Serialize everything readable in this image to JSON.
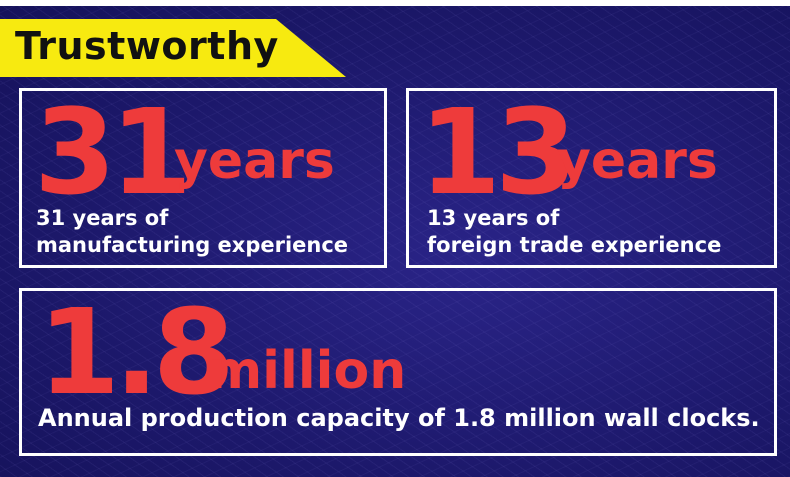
{
  "header": {
    "tag_label": "Trustworthy"
  },
  "stats": [
    {
      "value": "31",
      "unit": "years",
      "desc_line1": "31 years of",
      "desc_line2": "manufacturing experience"
    },
    {
      "value": "13",
      "unit": "years",
      "desc_line1": "13 years of",
      "desc_line2": "foreign trade experience"
    },
    {
      "value": "1.8",
      "unit": "million",
      "desc_line1": "Annual production capacity of 1.8 million wall clocks."
    }
  ],
  "colors": {
    "accent_red": "#ee3b3b",
    "tag_yellow": "#f7ea10",
    "background": "#1e1a6e",
    "border": "#ffffff"
  }
}
